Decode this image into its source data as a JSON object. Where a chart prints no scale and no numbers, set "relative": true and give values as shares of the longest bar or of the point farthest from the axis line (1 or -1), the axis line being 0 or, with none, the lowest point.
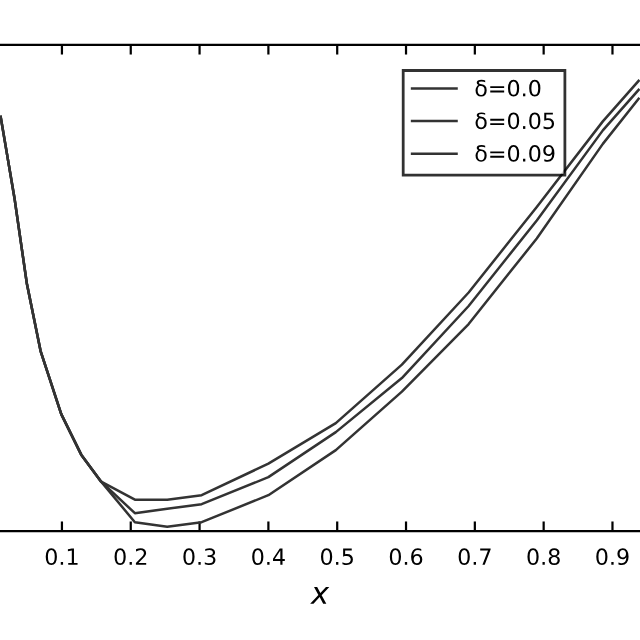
{
  "chart_data": {
    "type": "line",
    "xlabel": "x",
    "relative": true,
    "xlim": [
      0.01,
      0.94
    ],
    "xticks": [
      0.1,
      0.2,
      0.3,
      0.4,
      0.5,
      0.6,
      0.7,
      0.8,
      0.9
    ],
    "x": [
      0.011,
      0.031,
      0.049,
      0.069,
      0.099,
      0.128,
      0.157,
      0.206,
      0.253,
      0.303,
      0.4,
      0.498,
      0.594,
      0.691,
      0.79,
      0.886,
      0.938
    ],
    "legend": "top right",
    "line_style": "solid",
    "marker": "none",
    "grid": false,
    "series": [
      {
        "name": "δ=0.0",
        "color": "#333333",
        "values": [
          0.92,
          0.74,
          0.55,
          0.4,
          0.26,
          0.17,
          0.11,
          0.07,
          0.07,
          0.08,
          0.15,
          0.24,
          0.37,
          0.53,
          0.72,
          0.91,
          1.0
        ]
      },
      {
        "name": "δ=0.05",
        "color": "#333333",
        "values": [
          0.92,
          0.74,
          0.55,
          0.4,
          0.26,
          0.17,
          0.11,
          0.04,
          0.05,
          0.06,
          0.12,
          0.22,
          0.34,
          0.5,
          0.69,
          0.89,
          0.98
        ]
      },
      {
        "name": "δ=0.09",
        "color": "#333333",
        "values": [
          0.92,
          0.74,
          0.55,
          0.4,
          0.26,
          0.17,
          0.11,
          0.02,
          0.01,
          0.02,
          0.08,
          0.18,
          0.31,
          0.46,
          0.65,
          0.86,
          0.96
        ]
      }
    ]
  }
}
